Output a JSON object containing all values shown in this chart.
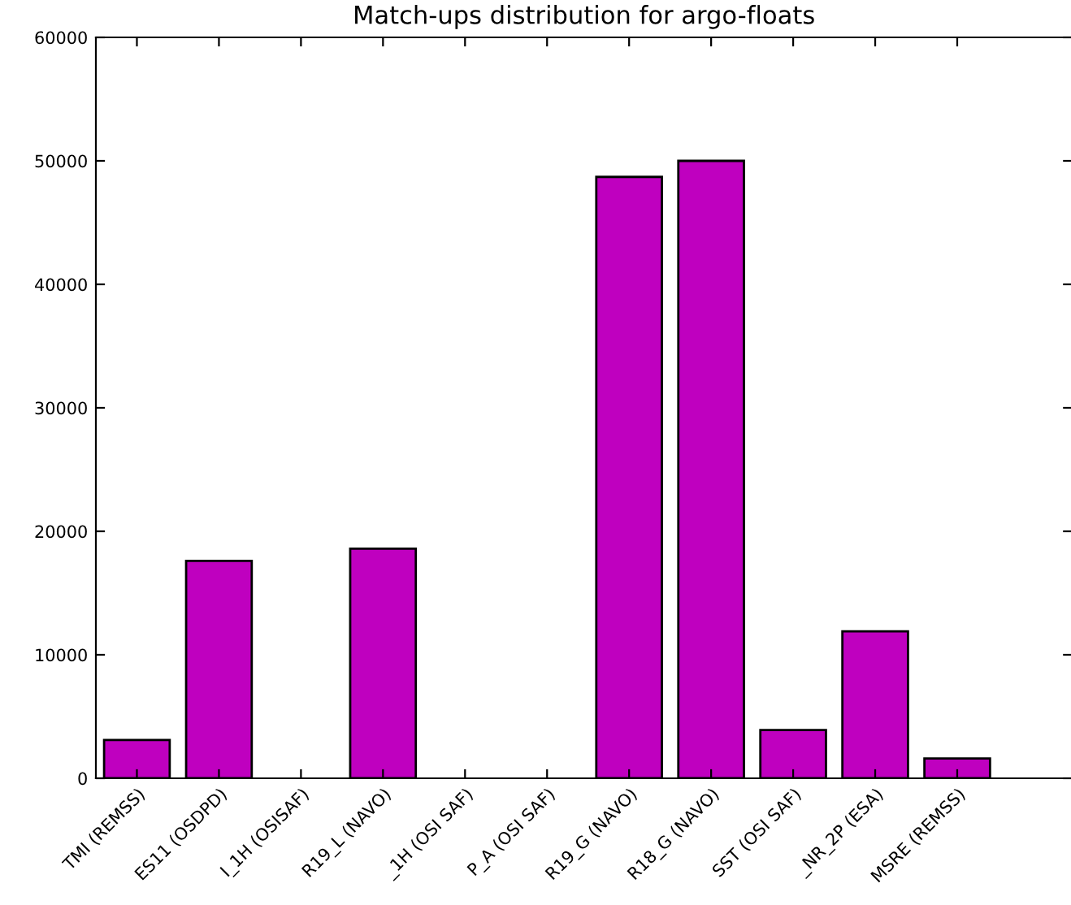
{
  "chart_data": {
    "type": "bar",
    "title": "Match-ups distribution for argo-floats",
    "categories": [
      "TMI (REMSS)",
      "ES11 (OSDPD)",
      "I_1H (OSISAF)",
      "R19_L (NAVO)",
      "_1H (OSI SAF)",
      "P_A (OSI SAF)",
      "R19_G (NAVO)",
      "R18_G (NAVO)",
      "SST (OSI SAF)",
      "_NR_2P (ESA)",
      "MSRE (REMSS)"
    ],
    "values": [
      3100,
      17600,
      0,
      18600,
      0,
      0,
      48700,
      50000,
      3900,
      11900,
      1600
    ],
    "color": "#bf00bf",
    "ylim": [
      0,
      60000
    ],
    "yticks": [
      0,
      10000,
      20000,
      30000,
      40000,
      50000,
      60000
    ],
    "grid": false
  }
}
